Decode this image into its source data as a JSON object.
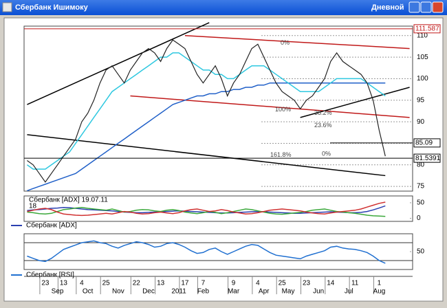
{
  "window": {
    "title": "Сбербанк Ишимоку",
    "mode": "Дневной"
  },
  "chart_data": [
    {
      "type": "line",
      "categories": [
        null,
        null,
        null,
        "23",
        null,
        null,
        "13",
        null,
        null,
        "4",
        null,
        null,
        null,
        "25",
        null,
        null,
        null,
        null,
        "22",
        null,
        null,
        null,
        "13",
        null,
        null,
        null,
        "17",
        null,
        null,
        "7",
        null,
        null,
        null,
        null,
        "9",
        null,
        null,
        null,
        "4",
        null,
        null,
        null,
        "25",
        null,
        null,
        null,
        "23",
        null,
        null,
        null,
        "14",
        null,
        null,
        null,
        "11",
        null,
        null,
        null,
        "1",
        null,
        null,
        null,
        null,
        null
      ],
      "month_labels": [
        null,
        null,
        null,
        null,
        null,
        "Sep",
        null,
        null,
        null,
        null,
        "Oct",
        null,
        null,
        null,
        null,
        "Nov",
        null,
        null,
        null,
        null,
        "Dec",
        null,
        null,
        null,
        null,
        "2011",
        null,
        null,
        null,
        "Feb",
        null,
        null,
        null,
        null,
        "Mar",
        null,
        null,
        null,
        null,
        "Apr",
        null,
        null,
        null,
        "May",
        null,
        null,
        null,
        null,
        "Jun",
        null,
        null,
        null,
        null,
        "Jul",
        null,
        null,
        null,
        null,
        "Aug",
        null,
        null,
        null,
        null,
        null
      ],
      "series": [
        {
          "color": "#1f5fc8",
          "values": [
            74,
            74.5,
            75,
            75.5,
            76,
            76.5,
            77,
            77.5,
            78,
            79,
            80,
            81,
            82,
            83,
            84,
            85,
            86,
            87,
            88,
            89,
            90,
            91,
            92,
            93,
            94,
            94.5,
            95,
            95.5,
            96,
            96,
            96.5,
            96.5,
            97,
            97,
            97.5,
            97.5,
            98,
            98,
            98.5,
            98.5,
            99,
            99,
            99,
            99,
            99,
            99,
            99,
            99,
            99,
            99,
            99,
            99,
            99,
            99,
            99,
            99,
            99,
            99,
            99,
            99,
            null,
            null,
            null,
            null
          ]
        },
        {
          "color": "#2ec8e0",
          "values": [
            80,
            79,
            79,
            79,
            80,
            81,
            82,
            83,
            85,
            87,
            89,
            91,
            93,
            95,
            97,
            98,
            99,
            100,
            101,
            102,
            103,
            104,
            105,
            105,
            106,
            106,
            105,
            104,
            103,
            102,
            102,
            101,
            101,
            100,
            100,
            101,
            102,
            103,
            103,
            103,
            102,
            101,
            100,
            99,
            98,
            97,
            97,
            97,
            97,
            98,
            99,
            100,
            100,
            100,
            100,
            100,
            99,
            98,
            97,
            96,
            null,
            null,
            null,
            null
          ]
        },
        {
          "color": "#222222",
          "values": [
            81,
            80,
            78,
            76,
            78,
            80,
            82,
            84,
            86,
            90,
            92,
            95,
            99,
            102,
            103,
            101,
            99,
            102,
            104,
            106,
            107,
            106,
            104,
            107,
            109,
            108,
            107,
            104,
            101,
            99,
            101,
            103,
            100,
            96,
            99,
            101,
            104,
            107,
            108,
            105,
            102,
            99,
            97,
            96,
            95,
            93,
            95,
            96,
            98,
            100,
            104,
            106,
            104,
            103,
            102,
            101,
            99,
            95,
            88,
            82,
            null,
            null,
            null,
            null
          ]
        }
      ],
      "trendlines": [
        {
          "color": "#000000",
          "x": [
            0,
            30
          ],
          "y": [
            94,
            113
          ]
        },
        {
          "color": "#000000",
          "x": [
            0,
            59
          ],
          "y": [
            87,
            77.5
          ]
        },
        {
          "color": "#c01818",
          "x": [
            26,
            63
          ],
          "y": [
            110,
            107
          ]
        },
        {
          "color": "#c01818",
          "x": [
            17,
            63
          ],
          "y": [
            96,
            91
          ]
        },
        {
          "color": "#000000",
          "x": [
            45,
            63
          ],
          "y": [
            91,
            98
          ]
        }
      ],
      "price_labels": [
        {
          "value": 111.587,
          "label": "111.587",
          "color": "#c01818"
        },
        {
          "value": 85.09,
          "label": "85.09",
          "color": "#000000"
        },
        {
          "value": 81.5391,
          "label": "81.5391",
          "color": "#000000"
        }
      ],
      "annotations": [
        {
          "text": "0%",
          "y": 107.5
        },
        {
          "text": "100%",
          "y": 92
        },
        {
          "text": "38.2%",
          "y": 91.2
        },
        {
          "text": "23.6%",
          "y": 88.3
        },
        {
          "text": "161.8%",
          "y": 81.5
        },
        {
          "text": "0%",
          "y": 81.7
        }
      ],
      "ylim": [
        73.9,
        112.2
      ],
      "yticks": [
        75,
        80,
        85,
        90,
        95,
        100,
        105,
        110
      ],
      "grid": true
    },
    {
      "type": "line",
      "title": "Сбербанк [ADX] 19.07.11",
      "subtitle": "18",
      "legend": "Сбербанк [ADX]",
      "series": [
        {
          "color": "#2a3fb0",
          "values": [
            25,
            27,
            28,
            30,
            32,
            33,
            35,
            34,
            32,
            30,
            28,
            27,
            26,
            25,
            24,
            22,
            20,
            19,
            18,
            18,
            19,
            20,
            21,
            22,
            23,
            24,
            23,
            22,
            21,
            20,
            19,
            18,
            17,
            17,
            18,
            19,
            20,
            21,
            22,
            21,
            20,
            19,
            18,
            17,
            16,
            16,
            17,
            18,
            19,
            20,
            21,
            20,
            19,
            18,
            18,
            19,
            22,
            27,
            33,
            40,
            null,
            null,
            null,
            null
          ]
        },
        {
          "color": "#3aa83a",
          "values": [
            20,
            18,
            15,
            14,
            16,
            22,
            28,
            30,
            33,
            35,
            32,
            30,
            28,
            26,
            30,
            25,
            20,
            22,
            26,
            28,
            27,
            24,
            22,
            26,
            28,
            25,
            20,
            17,
            15,
            18,
            22,
            19,
            15,
            18,
            22,
            26,
            30,
            28,
            24,
            20,
            16,
            14,
            13,
            15,
            17,
            19,
            22,
            26,
            28,
            30,
            26,
            22,
            20,
            18,
            16,
            13,
            10,
            8,
            7,
            6,
            null,
            null,
            null,
            null
          ]
        },
        {
          "color": "#d03030",
          "values": [
            22,
            26,
            30,
            32,
            28,
            20,
            14,
            12,
            10,
            9,
            10,
            12,
            14,
            16,
            14,
            18,
            22,
            20,
            16,
            14,
            15,
            18,
            20,
            17,
            15,
            18,
            24,
            28,
            30,
            26,
            22,
            24,
            28,
            25,
            20,
            17,
            14,
            15,
            18,
            22,
            26,
            28,
            30,
            28,
            26,
            24,
            20,
            17,
            15,
            14,
            17,
            20,
            22,
            24,
            26,
            30,
            36,
            42,
            48,
            52,
            null,
            null,
            null,
            null
          ]
        }
      ],
      "ylim": [
        -10,
        72
      ],
      "yticks": [
        0,
        50
      ]
    },
    {
      "type": "line",
      "legend": "Сбербанк [RSI]",
      "series": [
        {
          "color": "#1f6fd0",
          "values": [
            40,
            35,
            30,
            28,
            35,
            45,
            55,
            60,
            65,
            70,
            72,
            74,
            70,
            68,
            62,
            58,
            64,
            68,
            72,
            70,
            66,
            60,
            62,
            68,
            70,
            66,
            60,
            52,
            46,
            48,
            55,
            58,
            50,
            44,
            50,
            56,
            62,
            66,
            64,
            56,
            48,
            42,
            40,
            38,
            36,
            34,
            40,
            44,
            48,
            52,
            60,
            62,
            58,
            56,
            55,
            52,
            48,
            40,
            30,
            24,
            null,
            null,
            null,
            null
          ]
        }
      ],
      "levels": [
        30,
        70
      ],
      "ylim": [
        10,
        90
      ],
      "yticks": [
        50
      ]
    }
  ]
}
